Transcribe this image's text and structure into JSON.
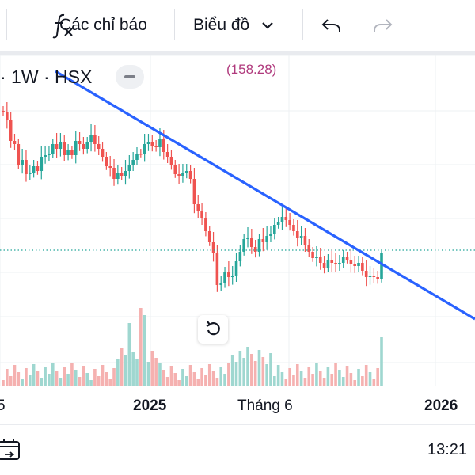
{
  "toolbar": {
    "indicators_label": "Các chỉ báo",
    "chart_label": "Biểu đồ"
  },
  "legend": {
    "symbol_text": "· 1W · HSX",
    "indicator_value": "(158.28)"
  },
  "chart_data": {
    "type": "candlestick",
    "x_tick_labels": [
      "5",
      "2025",
      "Tháng 6",
      "2026"
    ],
    "price_dotted_line": "current price",
    "trendline": "descending",
    "colors": {
      "up": "#26a69a",
      "down": "#ef5350",
      "trendline": "#2962ff",
      "vol_up": "#9fd7d0",
      "vol_down": "#f5b1b0"
    }
  },
  "status": {
    "clock": "13:21"
  },
  "icons": {
    "indicators": "fx-icon",
    "chart_type": "chevron-down-icon",
    "undo": "undo-icon",
    "redo": "redo-icon",
    "reset": "reset-icon",
    "collapse": "minus-icon",
    "date_range": "date-range-icon"
  }
}
